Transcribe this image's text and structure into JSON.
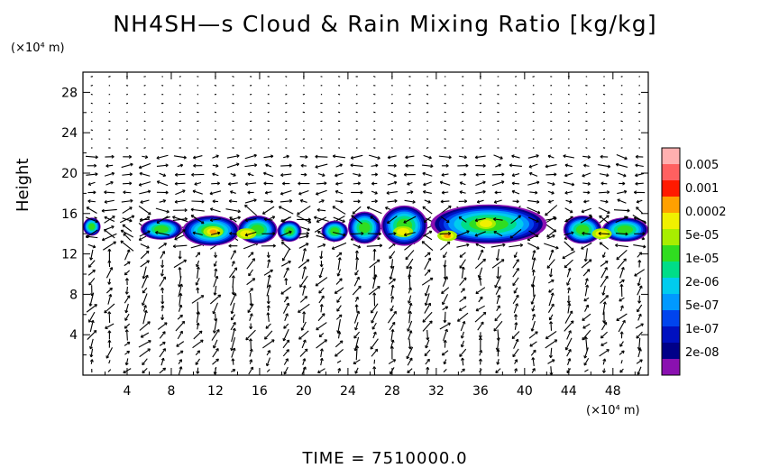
{
  "chart_data": {
    "type": "heatmap",
    "title": "NH4SH—s Cloud & Rain Mixing Ratio [kg/kg]",
    "ylabel": "Height",
    "y_unit": "(×10⁴ m)",
    "x_unit": "(×10⁴ m)",
    "x_ticks": [
      "4",
      "8",
      "12",
      "16",
      "20",
      "24",
      "28",
      "32",
      "36",
      "40",
      "44",
      "48"
    ],
    "y_ticks": [
      "4",
      "8",
      "12",
      "16",
      "20",
      "24",
      "28"
    ],
    "xlim": [
      0,
      51.2
    ],
    "ylim": [
      0,
      30
    ],
    "time_label": "TIME  =  7510000.0",
    "colorbar": {
      "labels": [
        "0.005",
        "0.001",
        "0.0002",
        "5e-05",
        "1e-05",
        "2e-06",
        "5e-07",
        "1e-07",
        "2e-08"
      ],
      "colors": [
        "#ffb0b0",
        "#ff6060",
        "#ff1a00",
        "#ffa000",
        "#f0f000",
        "#a8ee00",
        "#30dd20",
        "#00dd88",
        "#00ccee",
        "#0099ff",
        "#0044ee",
        "#0010c0",
        "#000088",
        "#8a10b0"
      ]
    },
    "cloud_band": {
      "segments": [
        {
          "x0": 0,
          "x1": 1.6,
          "ybot": 13.8,
          "ytop": 15.6
        },
        {
          "x0": 5.2,
          "x1": 9.0,
          "ybot": 13.4,
          "ytop": 15.5
        },
        {
          "x0": 9.0,
          "x1": 14.2,
          "ybot": 12.8,
          "ytop": 15.8
        },
        {
          "x0": 14.0,
          "x1": 17.6,
          "ybot": 13.0,
          "ytop": 15.8
        },
        {
          "x0": 17.6,
          "x1": 19.8,
          "ybot": 13.2,
          "ytop": 15.3
        },
        {
          "x0": 21.6,
          "x1": 24.0,
          "ybot": 13.2,
          "ytop": 15.3
        },
        {
          "x0": 24.0,
          "x1": 27.0,
          "ybot": 13.0,
          "ytop": 16.2
        },
        {
          "x0": 27.0,
          "x1": 31.2,
          "ybot": 12.8,
          "ytop": 16.8
        },
        {
          "x0": 31.5,
          "x1": 42.0,
          "ybot": 13.0,
          "ytop": 16.9
        },
        {
          "x0": 43.5,
          "x1": 47.0,
          "ybot": 13.0,
          "ytop": 15.8
        },
        {
          "x0": 47.0,
          "x1": 51.2,
          "ybot": 13.2,
          "ytop": 15.6
        }
      ],
      "hotspots": [
        {
          "x": 11.8,
          "y": 14.2,
          "level": "0.0002"
        },
        {
          "x": 33.0,
          "y": 13.8,
          "level": "0.0002"
        },
        {
          "x": 14.8,
          "y": 14.0,
          "level": "5e-05"
        },
        {
          "x": 29.0,
          "y": 14.2,
          "level": "5e-05"
        },
        {
          "x": 36.5,
          "y": 15.0,
          "level": "5e-05"
        },
        {
          "x": 47.0,
          "y": 14.0,
          "level": "5e-05"
        }
      ]
    }
  }
}
